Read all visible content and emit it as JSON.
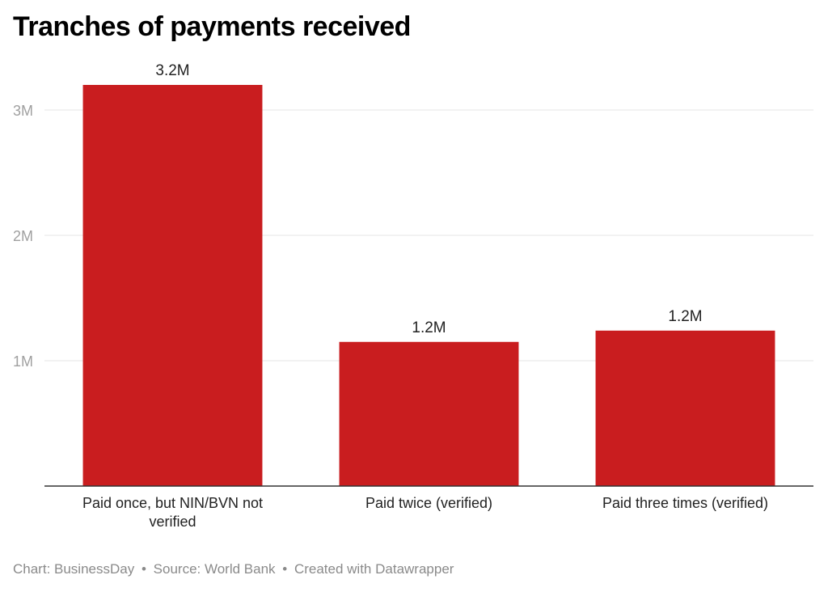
{
  "title": "Tranches of payments received",
  "footer": {
    "chart_credit": "Chart: BusinessDay",
    "source": "Source: World Bank",
    "tool": "Created with Datawrapper"
  },
  "colors": {
    "bar": "#c91d1f",
    "grid": "#e6e6e6",
    "axis_tick_text": "#a0a0a0",
    "baseline": "#333333"
  },
  "chart_data": {
    "type": "bar",
    "categories": [
      "Paid once, but NIN/BVN not verified",
      "Paid twice (verified)",
      "Paid three times (verified)"
    ],
    "category_lines": [
      [
        "Paid once, but NIN/BVN not",
        "verified"
      ],
      [
        "Paid twice (verified)"
      ],
      [
        "Paid three times (verified)"
      ]
    ],
    "values": [
      3200000,
      1150000,
      1240000
    ],
    "data_labels": [
      "3.2M",
      "1.2M",
      "1.2M"
    ],
    "y_ticks": [
      1000000,
      2000000,
      3000000
    ],
    "y_tick_labels": [
      "1M",
      "2M",
      "3M"
    ],
    "ylim": [
      0,
      3200000
    ],
    "grid": true,
    "title": "Tranches of payments received",
    "xlabel": "",
    "ylabel": ""
  }
}
